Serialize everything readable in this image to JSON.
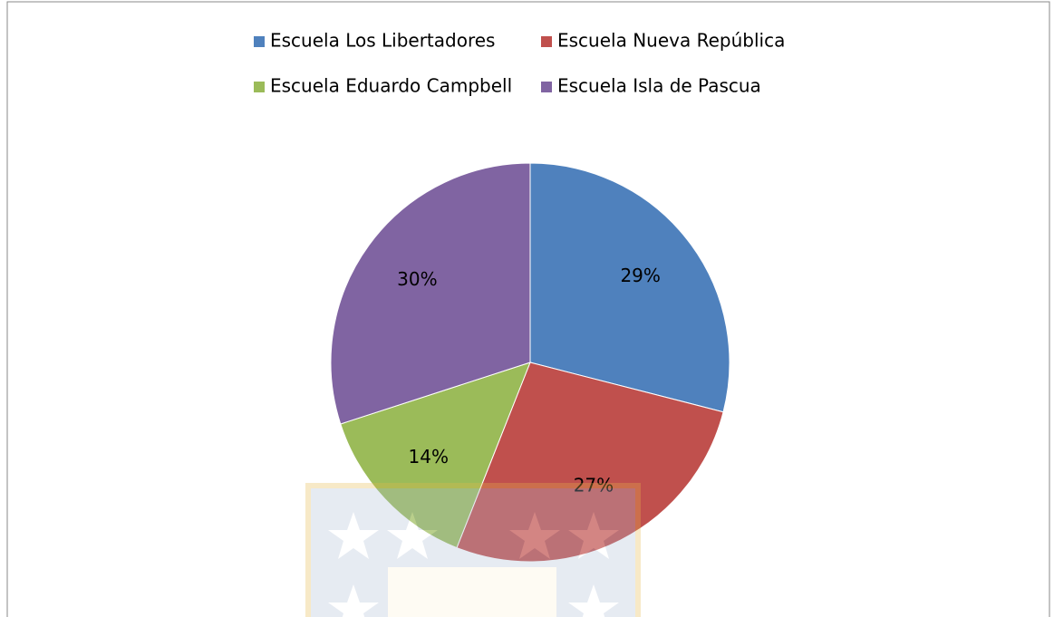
{
  "chart_data": {
    "type": "pie",
    "categories": [
      "Escuela Los Libertadores",
      "Escuela Nueva República",
      "Escuela Eduardo Campbell",
      "Escuela Isla de Pascua"
    ],
    "values": [
      29,
      27,
      14,
      30
    ],
    "value_labels": [
      "29%",
      "27%",
      "14%",
      "30%"
    ],
    "colors": [
      "#4f81bd",
      "#c0504d",
      "#9bbb59",
      "#8064a2"
    ],
    "legend": "top"
  }
}
